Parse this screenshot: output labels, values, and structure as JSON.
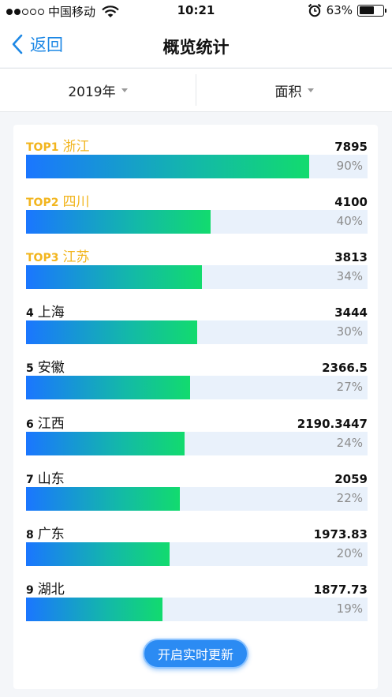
{
  "status_bar": {
    "carrier": "中国移动",
    "time": "10:21",
    "battery": "63%",
    "battery_level": 0.63,
    "signal_bars": 2,
    "signal_total": 5
  },
  "nav": {
    "back_label": "返回",
    "title": "概览统计"
  },
  "filters": {
    "year": "2019年",
    "metric": "面积"
  },
  "ranking": [
    {
      "rank": "TOP1",
      "name": "浙江",
      "value": "7895",
      "percent": "90%",
      "fraction": 0.83,
      "top": true
    },
    {
      "rank": "TOP2",
      "name": "四川",
      "value": "4100",
      "percent": "40%",
      "fraction": 0.54,
      "top": true
    },
    {
      "rank": "TOP3",
      "name": "江苏",
      "value": "3813",
      "percent": "34%",
      "fraction": 0.515,
      "top": true
    },
    {
      "rank": "4",
      "name": "上海",
      "value": "3444",
      "percent": "30%",
      "fraction": 0.5,
      "top": false
    },
    {
      "rank": "5",
      "name": "安徽",
      "value": "2366.5",
      "percent": "27%",
      "fraction": 0.48,
      "top": false
    },
    {
      "rank": "6",
      "name": "江西",
      "value": "2190.3447",
      "percent": "24%",
      "fraction": 0.465,
      "top": false
    },
    {
      "rank": "7",
      "name": "山东",
      "value": "2059",
      "percent": "22%",
      "fraction": 0.45,
      "top": false
    },
    {
      "rank": "8",
      "name": "广东",
      "value": "1973.83",
      "percent": "20%",
      "fraction": 0.42,
      "top": false
    },
    {
      "rank": "9",
      "name": "湖北",
      "value": "1877.73",
      "percent": "19%",
      "fraction": 0.4,
      "top": false
    }
  ],
  "live_button": "开启实时更新",
  "colors": {
    "accent": "#1e88e5",
    "top_rank": "#f2b51e",
    "bar_start": "#1a76ff",
    "bar_end": "#12db6e",
    "track": "#e9f1fb"
  }
}
